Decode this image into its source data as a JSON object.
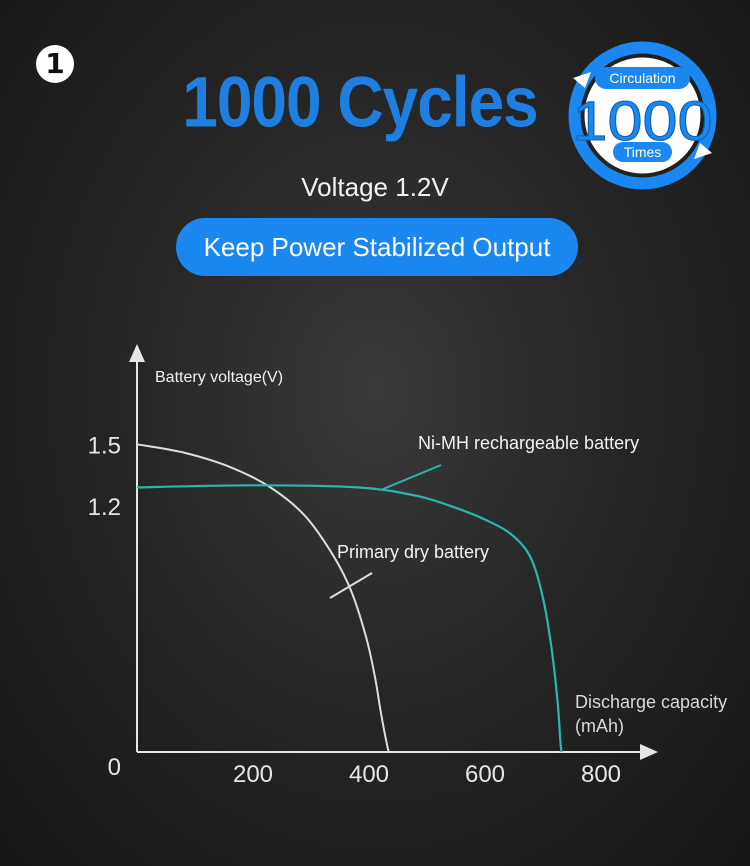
{
  "badge": {
    "number": "1"
  },
  "header": {
    "title": "1000 Cycles",
    "voltage_text": "Voltage 1.2V",
    "pill_text": "Keep Power Stabilized Output"
  },
  "seal": {
    "top_text": "Circulation",
    "number": "1000",
    "bottom_text": "Times"
  },
  "colors": {
    "accent": "#1f7fe0",
    "pill": "#1a88f0",
    "nimh_line": "#2bb5b0",
    "dry_line": "#dddddd"
  },
  "chart_data": {
    "type": "line",
    "ylabel": "Battery voltage(V)",
    "xlabel": "Discharge capacity",
    "xlabel_unit": "(mAh)",
    "x_ticks": [
      "200",
      "400",
      "600",
      "800"
    ],
    "y_ticks": [
      "0",
      "1.2",
      "1.5"
    ],
    "xlim": [
      0,
      900
    ],
    "ylim": [
      0,
      1.95
    ],
    "series": [
      {
        "name": "Primary dry battery",
        "color": "#dddddd",
        "points": [
          [
            0,
            1.5
          ],
          [
            80,
            1.46
          ],
          [
            160,
            1.39
          ],
          [
            230,
            1.29
          ],
          [
            290,
            1.15
          ],
          [
            340,
            0.95
          ],
          [
            370,
            0.78
          ],
          [
            395,
            0.56
          ],
          [
            410,
            0.37
          ],
          [
            420,
            0.2
          ],
          [
            430,
            0.05
          ],
          [
            434,
            0
          ]
        ]
      },
      {
        "name": "Ni-MH rechargeable battery",
        "color": "#2bb5b0",
        "points": [
          [
            0,
            1.29
          ],
          [
            200,
            1.3
          ],
          [
            380,
            1.29
          ],
          [
            480,
            1.25
          ],
          [
            550,
            1.19
          ],
          [
            610,
            1.12
          ],
          [
            650,
            1.05
          ],
          [
            680,
            0.94
          ],
          [
            700,
            0.75
          ],
          [
            715,
            0.5
          ],
          [
            725,
            0.25
          ],
          [
            730,
            0.05
          ],
          [
            732,
            0
          ]
        ]
      }
    ],
    "grid": false
  }
}
